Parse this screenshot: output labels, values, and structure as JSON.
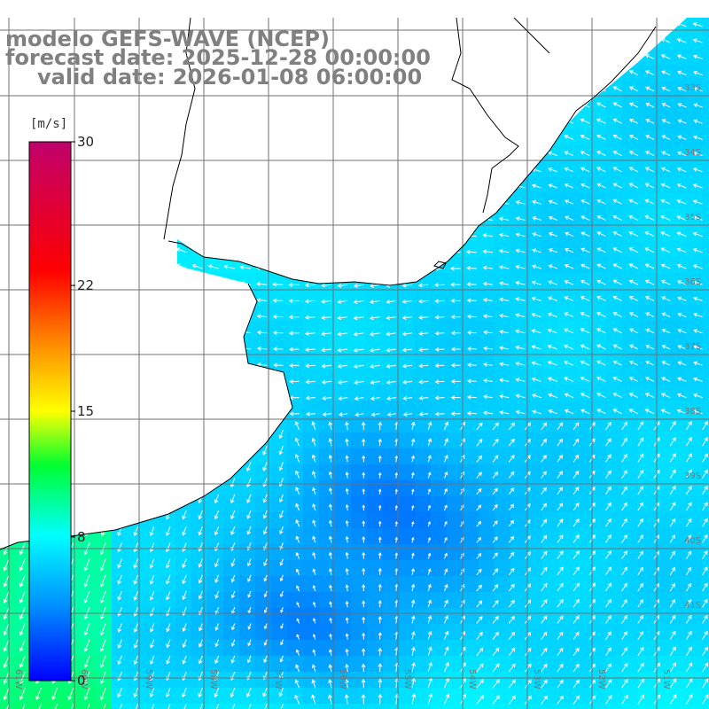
{
  "title": {
    "line1": "modelo GEFS-WAVE (NCEP)",
    "line2": "forecast date: 2025-12-28 00:00:00",
    "line3": "valid date: 2026-01-08 06:00:00"
  },
  "colorbar": {
    "unit": "[m/s]",
    "ticks": [
      {
        "value": 30,
        "label": "30"
      },
      {
        "value": 22,
        "label": "22"
      },
      {
        "value": 15,
        "label": "15"
      },
      {
        "value": 8,
        "label": "8"
      },
      {
        "value": 0,
        "label": "0"
      }
    ],
    "range": [
      0,
      30
    ],
    "colors": [
      "#0000ff",
      "#0090ff",
      "#00ffff",
      "#00ff30",
      "#ffff00",
      "#ff9000",
      "#ff0000",
      "#c0006c"
    ]
  },
  "map": {
    "lon_labels": [
      "61W",
      "60W",
      "59W",
      "58W",
      "57W",
      "56W",
      "55W",
      "54W",
      "53W",
      "52W",
      "51W"
    ],
    "lat_labels": [
      "33S",
      "34S",
      "35S",
      "36S",
      "37S",
      "38S",
      "39S",
      "40S",
      "41S"
    ],
    "grid": true,
    "vectors": "white arrows showing wind direction"
  }
}
